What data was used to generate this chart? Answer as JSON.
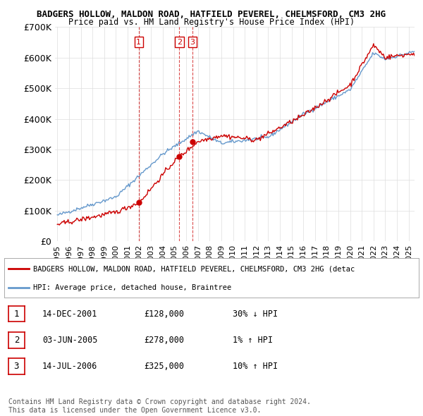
{
  "title_line1": "BADGERS HOLLOW, MALDON ROAD, HATFIELD PEVEREL, CHELMSFORD, CM3 2HG",
  "title_line2": "Price paid vs. HM Land Registry's House Price Index (HPI)",
  "ylim": [
    0,
    700000
  ],
  "yticks": [
    0,
    100000,
    200000,
    300000,
    400000,
    500000,
    600000,
    700000
  ],
  "ytick_labels": [
    "£0",
    "£100K",
    "£200K",
    "£300K",
    "£400K",
    "£500K",
    "£600K",
    "£700K"
  ],
  "x_start_year": 1995,
  "x_end_year": 2025,
  "sale_dates": [
    2001.95,
    2005.42,
    2006.54
  ],
  "sale_labels": [
    "1",
    "2",
    "3"
  ],
  "sale_prices": [
    128000,
    278000,
    325000
  ],
  "sale_date_strs": [
    "14-DEC-2001",
    "03-JUN-2005",
    "14-JUL-2006"
  ],
  "sale_price_strs": [
    "£128,000",
    "£278,000",
    "£325,000"
  ],
  "sale_hpi_strs": [
    "30% ↓ HPI",
    "1% ↑ HPI",
    "10% ↑ HPI"
  ],
  "red_line_color": "#cc0000",
  "blue_line_color": "#6699cc",
  "vline_color": "#cc0000",
  "background_color": "#ffffff",
  "grid_color": "#dddddd",
  "legend_label_red": "BADGERS HOLLOW, MALDON ROAD, HATFIELD PEVEREL, CHELMSFORD, CM3 2HG (detac",
  "legend_label_blue": "HPI: Average price, detached house, Braintree",
  "footer_text": "Contains HM Land Registry data © Crown copyright and database right 2024.\nThis data is licensed under the Open Government Licence v3.0.",
  "figsize": [
    6.0,
    5.9
  ],
  "dpi": 100
}
